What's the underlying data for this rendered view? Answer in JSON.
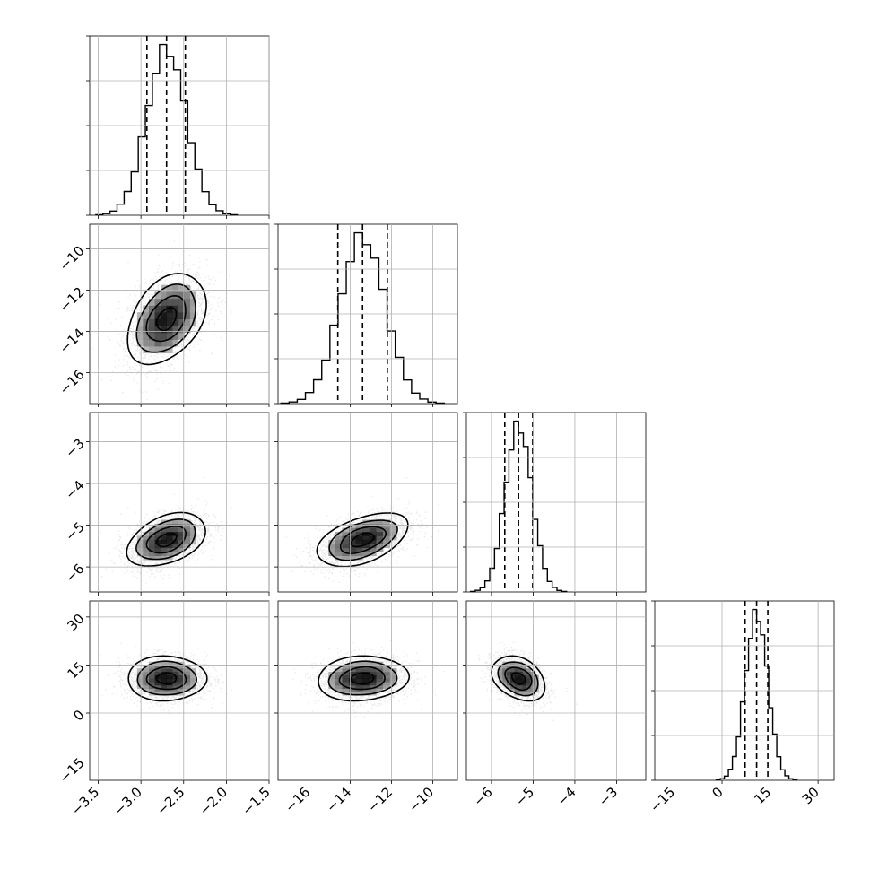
{
  "chart_data": {
    "type": "corner",
    "xlabel": "",
    "ylabel": "",
    "grid": true,
    "parameters": [
      {
        "range": [
          -3.6,
          -1.5
        ],
        "ticks": [
          -3.5,
          -3.0,
          -2.5,
          -2.0,
          -1.5
        ],
        "tick_labels": [
          "−3.5",
          "−3.0",
          "−2.5",
          "−2.0",
          "−1.5"
        ],
        "mean": -2.7,
        "sd": 0.23,
        "quantiles": [
          -2.93,
          -2.7,
          -2.48
        ]
      },
      {
        "range": [
          -17.5,
          -8.8
        ],
        "ticks": [
          -16,
          -14,
          -12,
          -10
        ],
        "tick_labels": [
          "−16",
          "−14",
          "−12",
          "−10"
        ],
        "mean": -13.4,
        "sd": 1.1,
        "quantiles": [
          -14.6,
          -13.4,
          -12.2
        ]
      },
      {
        "range": [
          -6.6,
          -2.3
        ],
        "ticks": [
          -6,
          -5,
          -4,
          -3
        ],
        "tick_labels": [
          "−6",
          "−5",
          "−4",
          "−3"
        ],
        "mean": -5.35,
        "sd": 0.32,
        "quantiles": [
          -5.68,
          -5.35,
          -5.01
        ]
      },
      {
        "range": [
          -21,
          35
        ],
        "ticks": [
          -15,
          0,
          15,
          30
        ],
        "tick_labels": [
          "−15",
          "0",
          "15",
          "30"
        ],
        "mean": 10.8,
        "sd": 3.5,
        "quantiles": [
          7.2,
          10.8,
          14.3
        ]
      }
    ],
    "correlations": [
      {
        "pair": [
          1,
          0
        ],
        "rho": 0.38
      },
      {
        "pair": [
          2,
          0
        ],
        "rho": 0.4
      },
      {
        "pair": [
          2,
          1
        ],
        "rho": 0.48
      },
      {
        "pair": [
          3,
          0
        ],
        "rho": 0.0
      },
      {
        "pair": [
          3,
          1
        ],
        "rho": 0.1
      },
      {
        "pair": [
          3,
          2
        ],
        "rho": -0.32
      }
    ],
    "histogram_bins": 20,
    "contour_levels_sigma": [
      0.5,
      1.0,
      1.5,
      2.0
    ]
  }
}
